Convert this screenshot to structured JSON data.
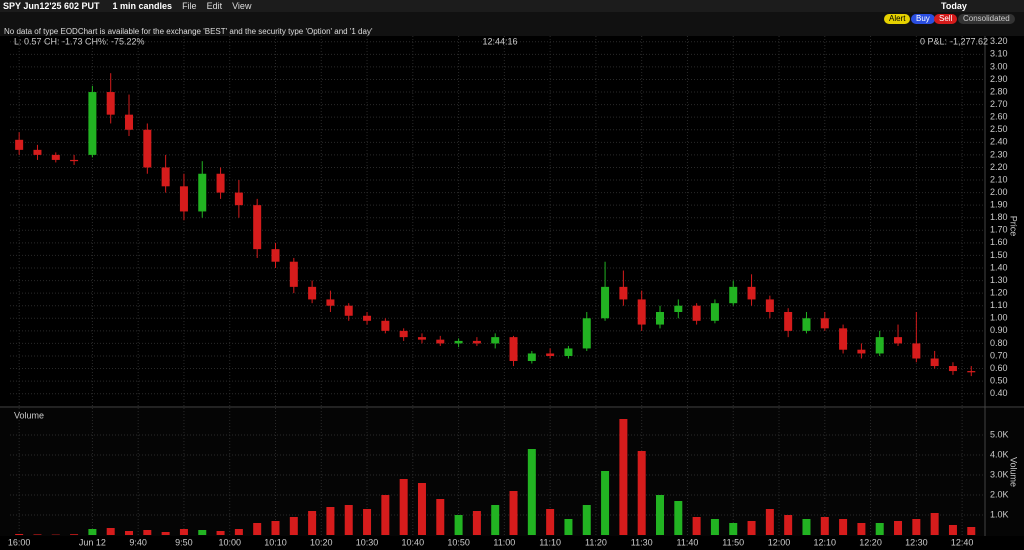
{
  "header": {
    "title": "SPY Jun12'25 602 PUT",
    "interval": "1 min candles",
    "menu": [
      "File",
      "Edit",
      "View"
    ],
    "today": "Today",
    "notice": "No data of type EODChart is available for the exchange 'BEST' and the security type 'Option' and '1 day'",
    "buttons": [
      "Alert",
      "Buy",
      "Sell",
      "Consolidated"
    ]
  },
  "chart_data": [
    {
      "type": "candlestick",
      "info": "L: 0.57 CH: -1.73 CH%: -75.22%",
      "time": "12:44:16",
      "pnl_label": "0 P&L:",
      "pnl": "-1,277.62",
      "y_label": "Price",
      "up_color": "#22b322",
      "down_color": "#d61c1c",
      "grid": true,
      "x": [
        -16,
        -12,
        -8,
        -4,
        0,
        4,
        8,
        12,
        16,
        20,
        24,
        28,
        32,
        36,
        40,
        44,
        48,
        52,
        56,
        60,
        64,
        68,
        72,
        76,
        80,
        84,
        88,
        92,
        96,
        100,
        104,
        108,
        112,
        116,
        120,
        124,
        128,
        132,
        136,
        140,
        144,
        148,
        152,
        156,
        160,
        164,
        168,
        172,
        176,
        180,
        184,
        188,
        192
      ],
      "open": [
        2.42,
        2.34,
        2.3,
        2.26,
        2.3,
        2.8,
        2.62,
        2.5,
        2.2,
        2.05,
        1.85,
        2.15,
        2.0,
        1.9,
        1.55,
        1.45,
        1.25,
        1.15,
        1.1,
        1.02,
        0.98,
        0.9,
        0.85,
        0.83,
        0.8,
        0.82,
        0.8,
        0.85,
        0.66,
        0.72,
        0.7,
        0.76,
        1.0,
        1.25,
        1.15,
        0.95,
        1.05,
        1.1,
        0.98,
        1.12,
        1.25,
        1.15,
        1.05,
        0.9,
        1.0,
        0.92,
        0.75,
        0.72,
        0.85,
        0.8,
        0.68,
        0.62,
        0.58
      ],
      "high": [
        2.48,
        2.38,
        2.32,
        2.3,
        2.85,
        2.95,
        2.78,
        2.55,
        2.3,
        2.15,
        2.25,
        2.2,
        2.1,
        1.95,
        1.6,
        1.48,
        1.3,
        1.22,
        1.12,
        1.05,
        1.0,
        0.92,
        0.88,
        0.86,
        0.84,
        0.85,
        0.88,
        0.86,
        0.74,
        0.76,
        0.78,
        1.05,
        1.45,
        1.38,
        1.22,
        1.1,
        1.15,
        1.12,
        1.15,
        1.3,
        1.35,
        1.18,
        1.08,
        1.05,
        1.05,
        0.95,
        0.8,
        0.9,
        0.95,
        1.05,
        0.74,
        0.65,
        0.62
      ],
      "low": [
        2.3,
        2.26,
        2.24,
        2.22,
        2.28,
        2.55,
        2.45,
        2.15,
        2.0,
        1.78,
        1.8,
        1.95,
        1.8,
        1.48,
        1.4,
        1.2,
        1.12,
        1.05,
        0.98,
        0.95,
        0.88,
        0.82,
        0.8,
        0.78,
        0.77,
        0.78,
        0.76,
        0.62,
        0.64,
        0.68,
        0.68,
        0.74,
        0.98,
        1.1,
        0.9,
        0.92,
        1.0,
        0.95,
        0.96,
        1.1,
        1.1,
        1.0,
        0.85,
        0.88,
        0.9,
        0.72,
        0.68,
        0.7,
        0.78,
        0.65,
        0.6,
        0.55,
        0.54
      ],
      "close": [
        2.34,
        2.3,
        2.26,
        2.25,
        2.8,
        2.62,
        2.5,
        2.2,
        2.05,
        1.85,
        2.15,
        2.0,
        1.9,
        1.55,
        1.45,
        1.25,
        1.15,
        1.1,
        1.02,
        0.98,
        0.9,
        0.85,
        0.83,
        0.8,
        0.82,
        0.8,
        0.85,
        0.66,
        0.72,
        0.7,
        0.76,
        1.0,
        1.25,
        1.15,
        0.95,
        1.05,
        1.1,
        0.98,
        1.12,
        1.25,
        1.15,
        1.05,
        0.9,
        1.0,
        0.92,
        0.75,
        0.72,
        0.85,
        0.8,
        0.68,
        0.62,
        0.58,
        0.57
      ],
      "xlim": [
        -18,
        195
      ],
      "ylim": [
        0.31,
        3.23
      ],
      "yticks": [
        {
          "value": 0.4,
          "label": "0.40"
        },
        {
          "value": 0.5,
          "label": "0.50"
        },
        {
          "value": 0.6,
          "label": "0.60"
        },
        {
          "value": 0.7,
          "label": "0.70"
        },
        {
          "value": 0.8,
          "label": "0.80"
        },
        {
          "value": 0.9,
          "label": "0.90"
        },
        {
          "value": 1.0,
          "label": "1.00"
        },
        {
          "value": 1.1,
          "label": "1.10"
        },
        {
          "value": 1.2,
          "label": "1.20"
        },
        {
          "value": 1.3,
          "label": "1.30"
        },
        {
          "value": 1.4,
          "label": "1.40"
        },
        {
          "value": 1.5,
          "label": "1.50"
        },
        {
          "value": 1.6,
          "label": "1.60"
        },
        {
          "value": 1.7,
          "label": "1.70"
        },
        {
          "value": 1.8,
          "label": "1.80"
        },
        {
          "value": 1.9,
          "label": "1.90"
        },
        {
          "value": 2.0,
          "label": "2.00"
        },
        {
          "value": 2.1,
          "label": "2.10"
        },
        {
          "value": 2.2,
          "label": "2.20"
        },
        {
          "value": 2.3,
          "label": "2.30"
        },
        {
          "value": 2.4,
          "label": "2.40"
        },
        {
          "value": 2.5,
          "label": "2.50"
        },
        {
          "value": 2.6,
          "label": "2.60"
        },
        {
          "value": 2.7,
          "label": "2.70"
        },
        {
          "value": 2.8,
          "label": "2.80"
        },
        {
          "value": 2.9,
          "label": "2.90"
        },
        {
          "value": 3.0,
          "label": "3.00"
        },
        {
          "value": 3.1,
          "label": "3.10"
        },
        {
          "value": 3.2,
          "label": "3.20"
        }
      ]
    },
    {
      "type": "bar",
      "title": "Volume",
      "y_label": "Volume",
      "grid": true,
      "values": [
        50,
        30,
        20,
        40,
        300,
        350,
        200,
        250,
        150,
        300,
        250,
        200,
        300,
        600,
        700,
        900,
        1200,
        1400,
        1500,
        1300,
        2000,
        2800,
        2600,
        1800,
        1000,
        1200,
        1500,
        2200,
        4300,
        1300,
        800,
        1500,
        3200,
        5800,
        4200,
        2000,
        1700,
        900,
        800,
        600,
        700,
        1300,
        1000,
        800,
        900,
        800,
        600,
        600,
        700,
        800,
        1100,
        500,
        400
      ],
      "ylim": [
        0,
        6250
      ],
      "yticks": [
        {
          "value": 1000,
          "label": "1.0K"
        },
        {
          "value": 2000,
          "label": "2.0K"
        },
        {
          "value": 3000,
          "label": "3.0K"
        },
        {
          "value": 4000,
          "label": "4.0K"
        },
        {
          "value": 5000,
          "label": "5.0K"
        }
      ],
      "xticks": [
        {
          "value": -16,
          "label": "16:00"
        },
        {
          "value": 0,
          "label": "Jun 12"
        },
        {
          "value": 10,
          "label": "9:40"
        },
        {
          "value": 20,
          "label": "9:50"
        },
        {
          "value": 30,
          "label": "10:00"
        },
        {
          "value": 40,
          "label": "10:10"
        },
        {
          "value": 50,
          "label": "10:20"
        },
        {
          "value": 60,
          "label": "10:30"
        },
        {
          "value": 70,
          "label": "10:40"
        },
        {
          "value": 80,
          "label": "10:50"
        },
        {
          "value": 90,
          "label": "11:00"
        },
        {
          "value": 100,
          "label": "11:10"
        },
        {
          "value": 110,
          "label": "11:20"
        },
        {
          "value": 120,
          "label": "11:30"
        },
        {
          "value": 130,
          "label": "11:40"
        },
        {
          "value": 140,
          "label": "11:50"
        },
        {
          "value": 150,
          "label": "12:00"
        },
        {
          "value": 160,
          "label": "12:10"
        },
        {
          "value": 170,
          "label": "12:20"
        },
        {
          "value": 180,
          "label": "12:30"
        },
        {
          "value": 190,
          "label": "12:40"
        }
      ]
    }
  ]
}
